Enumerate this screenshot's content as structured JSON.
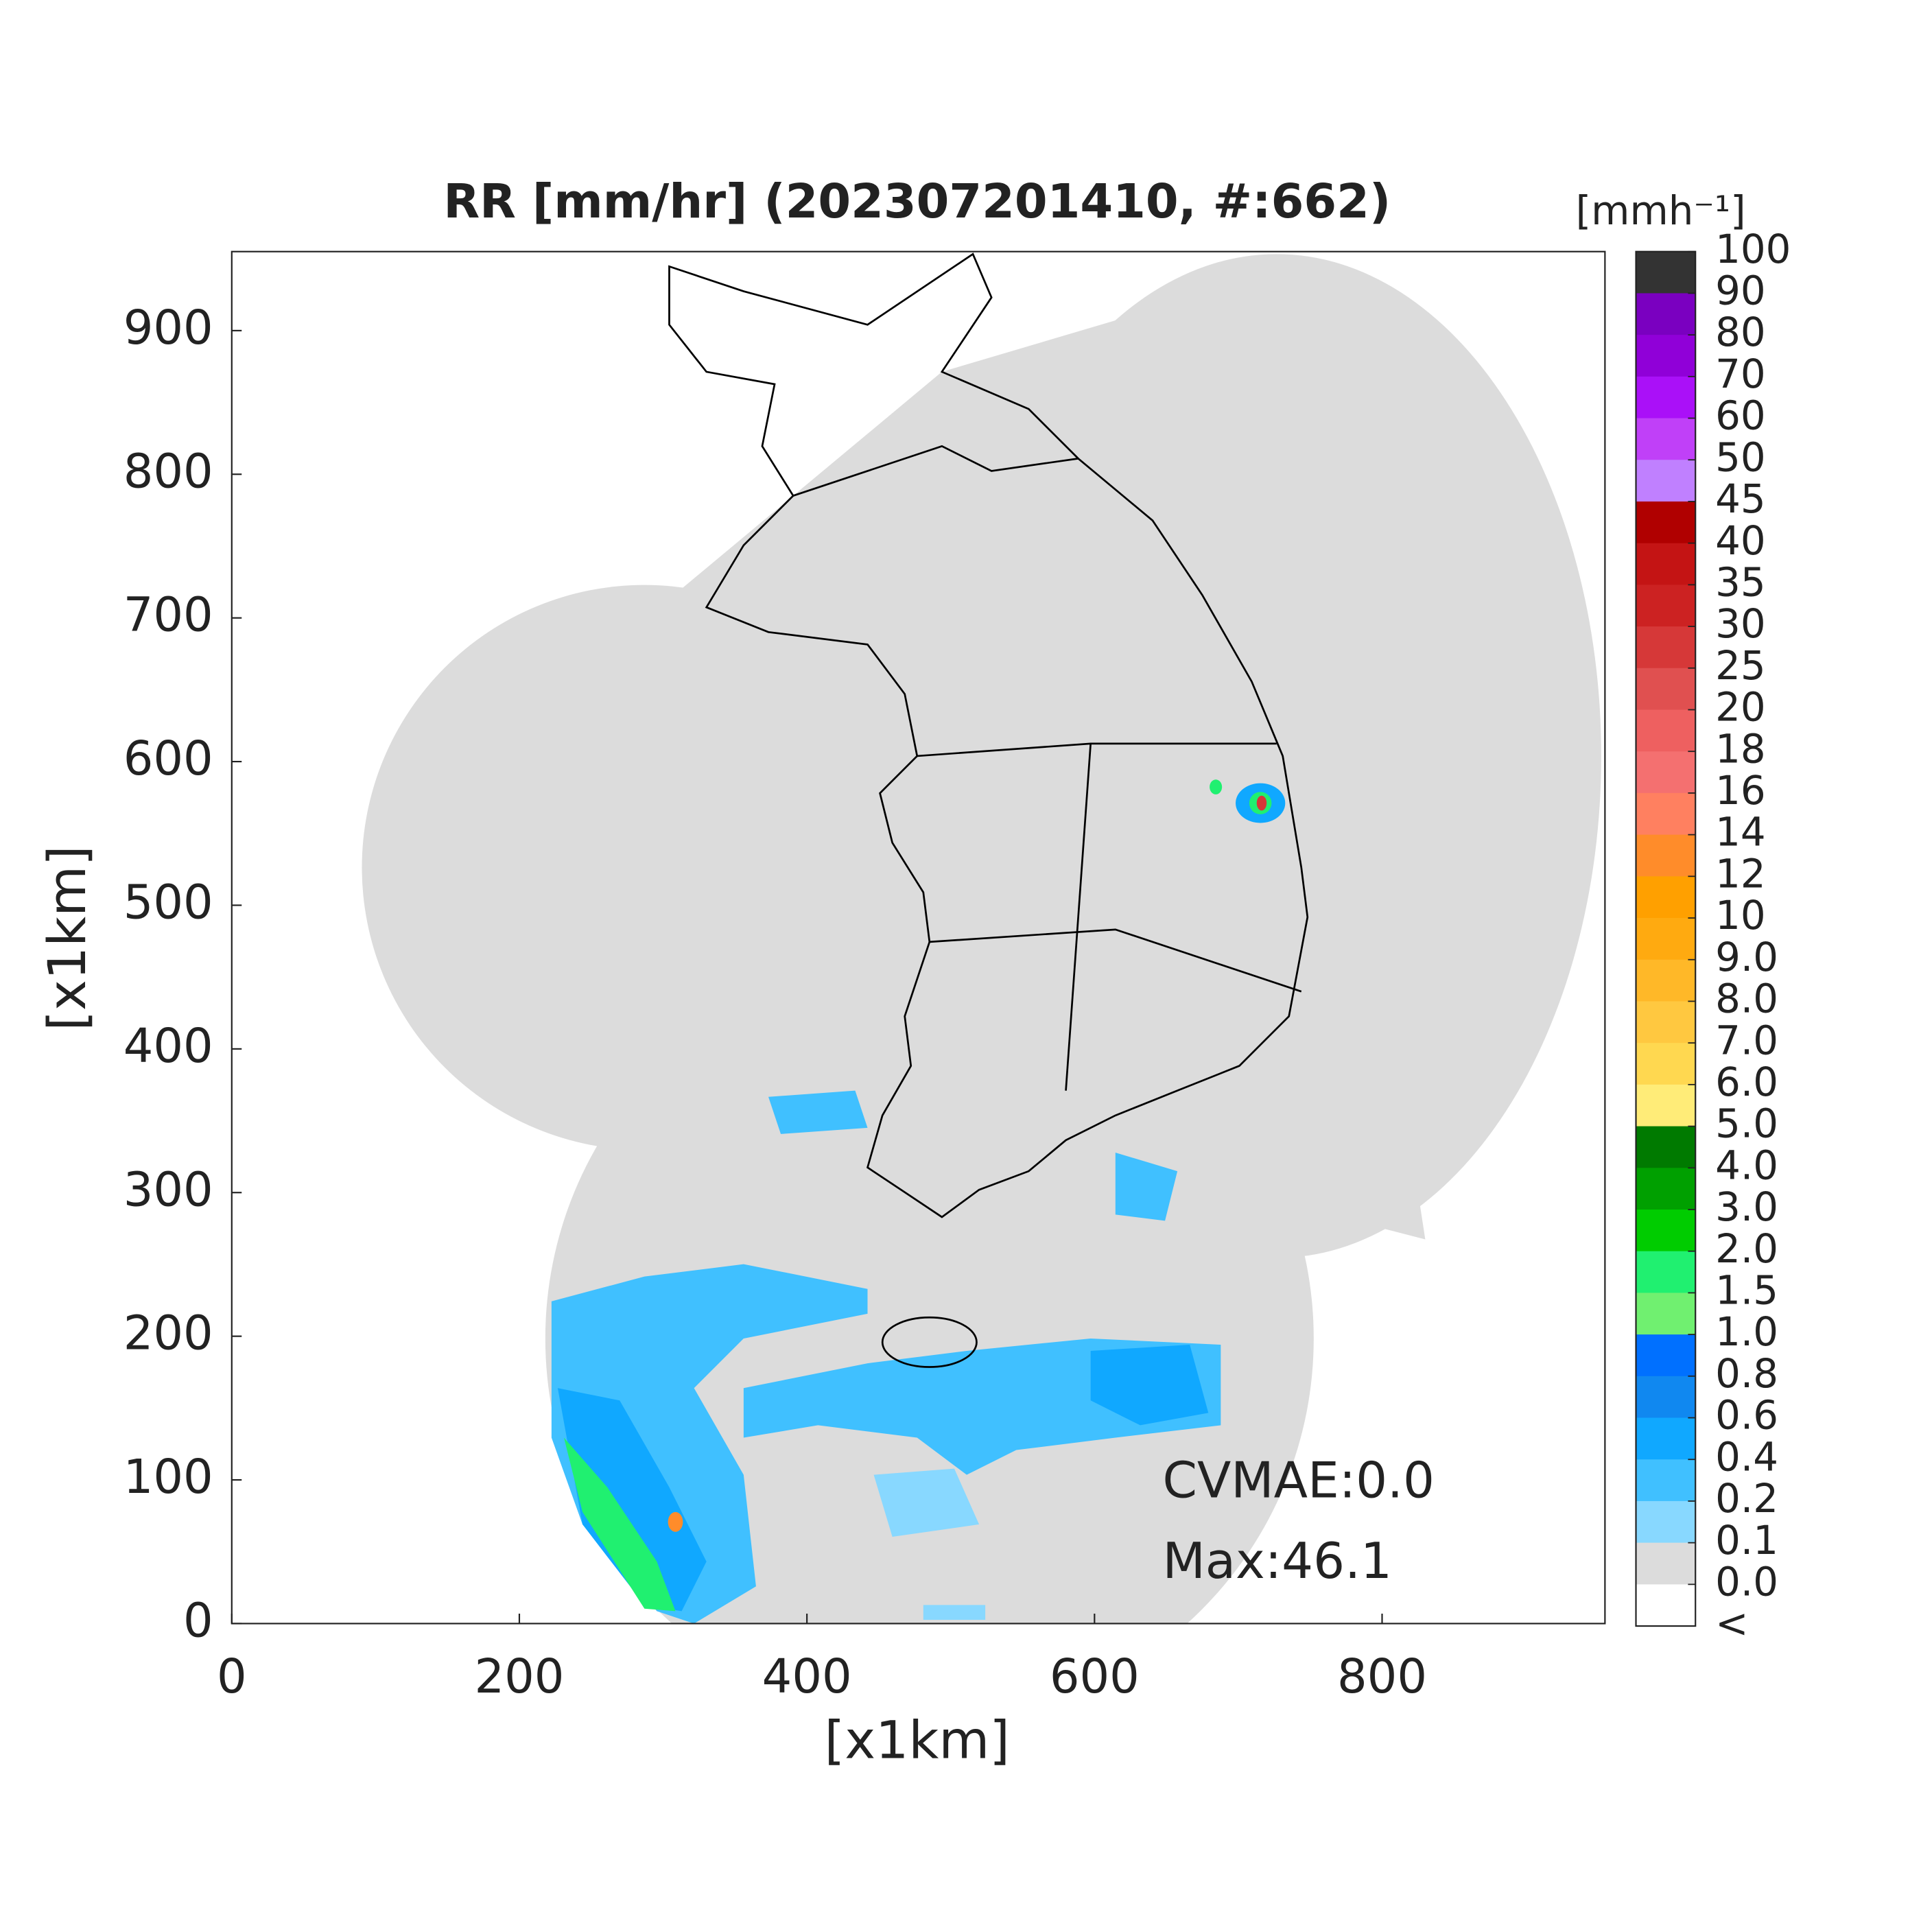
{
  "chart_data": {
    "type": "radar-map",
    "title": "RR [mm/hr] (202307201410, #:662)",
    "x_label": "[x1km]",
    "y_label": "[x1km]",
    "xlim": [
      0,
      955
    ],
    "ylim": [
      0,
      955
    ],
    "xticks": [
      0,
      200,
      400,
      600,
      800
    ],
    "yticks": [
      0,
      100,
      200,
      300,
      400,
      500,
      600,
      700,
      800,
      900
    ],
    "annotations": [
      "CVMAE:0.0",
      "Max:46.1"
    ],
    "colorbar": {
      "label": "[mmh⁻¹]",
      "ticks": [
        100,
        90,
        80,
        70,
        60,
        50,
        45,
        40,
        35,
        30,
        25,
        20,
        18,
        16,
        14,
        12,
        10,
        {
          "value": 9,
          "label": "9.0"
        },
        {
          "value": 8,
          "label": "8.0"
        },
        {
          "value": 7,
          "label": "7.0"
        },
        {
          "value": 6,
          "label": "6.0"
        },
        {
          "value": 5,
          "label": "5.0"
        },
        {
          "value": 4,
          "label": "4.0"
        },
        {
          "value": 3,
          "label": "3.0"
        },
        {
          "value": 2,
          "label": "2.0"
        },
        1.5,
        {
          "value": 1,
          "label": "1.0"
        },
        0.8,
        0.6,
        0.4,
        0.2,
        0.1,
        {
          "value": 0,
          "label": "0.0"
        }
      ],
      "under_label": "<",
      "colors": [
        "#333333",
        "#7a00c0",
        "#9000d8",
        "#aa10f8",
        "#c040f8",
        "#c080ff",
        "#b00000",
        "#c41414",
        "#cc2222",
        "#d63838",
        "#e05050",
        "#ee6060",
        "#f47070",
        "#ff8060",
        "#ff8c2a",
        "#ffa000",
        "#ffaa10",
        "#ffb828",
        "#ffc840",
        "#ffd850",
        "#ffec78",
        "#007a00",
        "#00a000",
        "#00cc00",
        "#20f070",
        "#70f070",
        "#0070ff",
        "#1088f0",
        "#10a8ff",
        "#40c0ff",
        "#88d8ff",
        "#dcdcdc"
      ],
      "under_color": "#ffffff"
    }
  }
}
